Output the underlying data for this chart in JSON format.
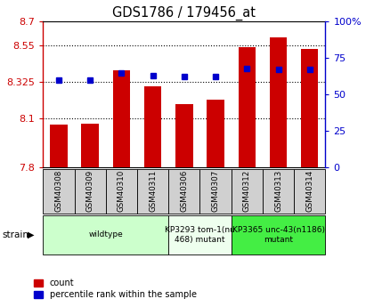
{
  "title": "GDS1786 / 179456_at",
  "samples": [
    "GSM40308",
    "GSM40309",
    "GSM40310",
    "GSM40311",
    "GSM40306",
    "GSM40307",
    "GSM40312",
    "GSM40313",
    "GSM40314"
  ],
  "count_values": [
    8.065,
    8.07,
    8.4,
    8.3,
    8.19,
    8.22,
    8.54,
    8.6,
    8.53
  ],
  "percentile_values": [
    60,
    60,
    65,
    63,
    62,
    62,
    68,
    67,
    67
  ],
  "y_min": 7.8,
  "y_max": 8.7,
  "y_ticks": [
    7.8,
    8.1,
    8.325,
    8.55,
    8.7
  ],
  "y_tick_labels": [
    "7.8",
    "8.1",
    "8.325",
    "8.55",
    "8.7"
  ],
  "right_y_ticks": [
    0,
    25,
    50,
    75,
    100
  ],
  "right_y_labels": [
    "0",
    "25",
    "50",
    "75",
    "100%"
  ],
  "grid_lines": [
    8.1,
    8.325,
    8.55
  ],
  "strain_groups": [
    {
      "label": "wildtype",
      "start": 0,
      "end": 4,
      "color": "#ccffcc"
    },
    {
      "label": "KP3293 tom-1(nu\n468) mutant",
      "start": 4,
      "end": 6,
      "color": "#eeffee"
    },
    {
      "label": "KP3365 unc-43(n1186)\nmutant",
      "start": 6,
      "end": 9,
      "color": "#44ee44"
    }
  ],
  "bar_color": "#cc0000",
  "dot_color": "#0000cc",
  "bar_width": 0.55,
  "background_color": "#ffffff",
  "plot_bg": "#ffffff",
  "left_tick_color": "#cc0000",
  "right_tick_color": "#0000cc",
  "name_box_color": "#d0d0d0",
  "legend_labels": [
    "count",
    "percentile rank within the sample"
  ]
}
